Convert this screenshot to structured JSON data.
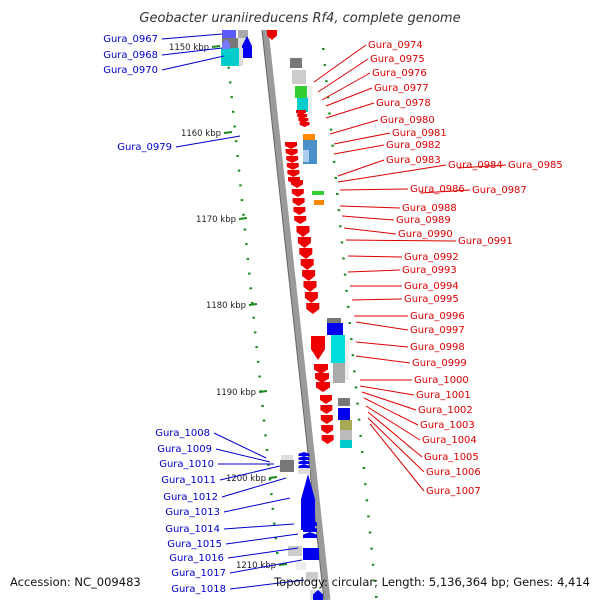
{
  "title": "Geobacter uraniireducens Rf4, complete genome",
  "footer": {
    "accession": "Accession: NC_009483",
    "topology": "Topology: circular; Length: 5,136,364 bp; Genes: 4,414"
  },
  "colors": {
    "forward": "#0000ee",
    "reverse": "#ee0000",
    "green": "#1a8a1a",
    "axis": "#8c8c8c"
  },
  "ticks": [
    {
      "label": "1150 kbp"
    },
    {
      "label": "1160 kbp"
    },
    {
      "label": "1170 kbp"
    },
    {
      "label": "1180 kbp"
    },
    {
      "label": "1190 kbp"
    },
    {
      "label": "1200 kbp"
    },
    {
      "label": "1210 kbp"
    }
  ],
  "left_labels": [
    "Gura_0967",
    "Gura_0968",
    "Gura_0970",
    "Gura_0979",
    "Gura_1008",
    "Gura_1009",
    "Gura_1010",
    "Gura_1011",
    "Gura_1012",
    "Gura_1013",
    "Gura_1014",
    "Gura_1015",
    "Gura_1016",
    "Gura_1017",
    "Gura_1018"
  ],
  "right_labels": [
    "Gura_0974",
    "Gura_0975",
    "Gura_0976",
    "Gura_0977",
    "Gura_0978",
    "Gura_0980",
    "Gura_0981",
    "Gura_0982",
    "Gura_0983",
    "Gura_0984",
    "Gura_0985",
    "Gura_0986",
    "Gura_0987",
    "Gura_0988",
    "Gura_0989",
    "Gura_0990",
    "Gura_0991",
    "Gura_0992",
    "Gura_0993",
    "Gura_0994",
    "Gura_0995",
    "Gura_0996",
    "Gura_0997",
    "Gura_0998",
    "Gura_0999",
    "Gura_1000",
    "Gura_1001",
    "Gura_1002",
    "Gura_1003",
    "Gura_1004",
    "Gura_1005",
    "Gura_1006",
    "Gura_1007"
  ]
}
